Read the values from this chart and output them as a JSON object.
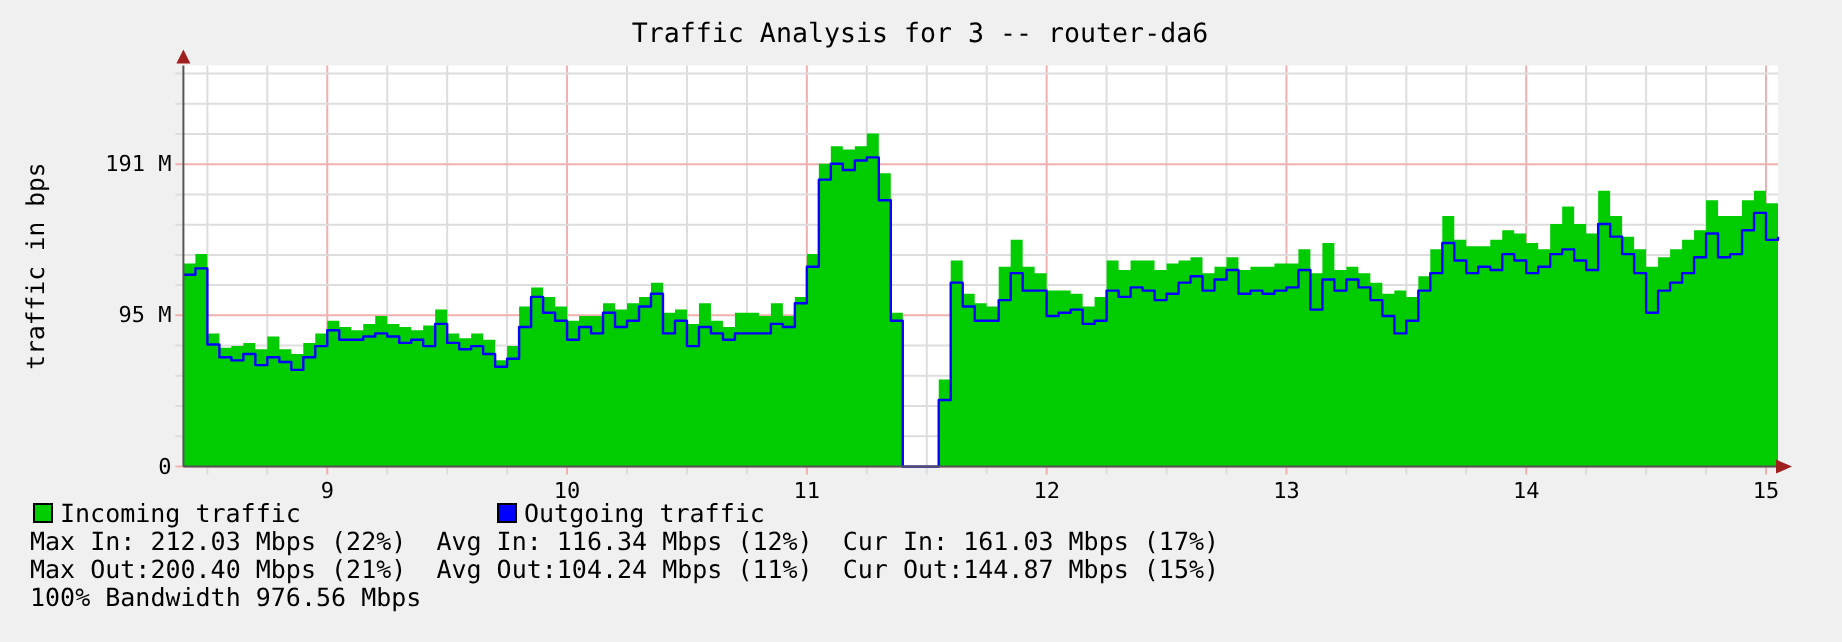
{
  "chart_data": {
    "type": "area",
    "title": "Traffic Analysis for 3 -- router-da6",
    "ylabel": "traffic in bps",
    "x": [
      8.4,
      8.45,
      8.5,
      8.55,
      8.6,
      8.65,
      8.7,
      8.75,
      8.8,
      8.85,
      8.9,
      8.95,
      9,
      9.05,
      9.1,
      9.15,
      9.2,
      9.25,
      9.3,
      9.35,
      9.4,
      9.45,
      9.5,
      9.55,
      9.6,
      9.65,
      9.7,
      9.75,
      9.8,
      9.85,
      9.9,
      9.95,
      10,
      10.05,
      10.1,
      10.15,
      10.2,
      10.25,
      10.3,
      10.35,
      10.4,
      10.45,
      10.5,
      10.55,
      10.6,
      10.65,
      10.7,
      10.75,
      10.8,
      10.85,
      10.9,
      10.95,
      11,
      11.05,
      11.1,
      11.15,
      11.2,
      11.25,
      11.3,
      11.35,
      11.4,
      11.45,
      11.5,
      11.55,
      11.6,
      11.65,
      11.7,
      11.75,
      11.8,
      11.85,
      11.9,
      11.95,
      12,
      12.05,
      12.1,
      12.15,
      12.2,
      12.25,
      12.3,
      12.35,
      12.4,
      12.45,
      12.5,
      12.55,
      12.6,
      12.65,
      12.7,
      12.75,
      12.8,
      12.85,
      12.9,
      12.95,
      13,
      13.05,
      13.1,
      13.15,
      13.2,
      13.25,
      13.3,
      13.35,
      13.4,
      13.45,
      13.5,
      13.55,
      13.6,
      13.65,
      13.7,
      13.75,
      13.8,
      13.85,
      13.9,
      13.95,
      14,
      14.05,
      14.1,
      14.15,
      14.2,
      14.25,
      14.3,
      14.35,
      14.4,
      14.45,
      14.5,
      14.55,
      14.6,
      14.65,
      14.7,
      14.75,
      14.8,
      14.85,
      14.9,
      14.95,
      15,
      15.05
    ],
    "series": [
      {
        "name": "Incoming traffic",
        "color": "#00cc00",
        "values": [
          128,
          134,
          84,
          75,
          76,
          78,
          74,
          82,
          74,
          71,
          78,
          84,
          92,
          88,
          86,
          90,
          95,
          90,
          88,
          86,
          89,
          99,
          84,
          81,
          84,
          80,
          67,
          76,
          101,
          113,
          107,
          101,
          92,
          95,
          95,
          103,
          99,
          103,
          107,
          116,
          97,
          99,
          90,
          103,
          92,
          88,
          97,
          97,
          95,
          103,
          95,
          107,
          134,
          191,
          202,
          200,
          202,
          210,
          185,
          97,
          0,
          0,
          0,
          55,
          130,
          109,
          103,
          101,
          126,
          143,
          126,
          122,
          111,
          111,
          109,
          101,
          107,
          130,
          124,
          130,
          130,
          124,
          128,
          130,
          132,
          122,
          126,
          132,
          124,
          126,
          126,
          128,
          128,
          137,
          122,
          141,
          124,
          126,
          122,
          116,
          109,
          111,
          107,
          120,
          137,
          158,
          143,
          139,
          139,
          143,
          149,
          147,
          141,
          137,
          153,
          164,
          153,
          147,
          174,
          158,
          145,
          137,
          126,
          132,
          137,
          143,
          149,
          168,
          158,
          158,
          168,
          174,
          166,
          161
        ]
      },
      {
        "name": "Outgoing traffic",
        "type": "step",
        "color": "#0000ff",
        "values": [
          121,
          125,
          77,
          69,
          67,
          71,
          64,
          69,
          66,
          61,
          69,
          76,
          86,
          80,
          80,
          82,
          84,
          82,
          78,
          80,
          76,
          90,
          78,
          74,
          76,
          71,
          63,
          68,
          88,
          107,
          97,
          92,
          80,
          88,
          84,
          97,
          88,
          92,
          101,
          109,
          84,
          92,
          76,
          88,
          84,
          80,
          84,
          84,
          84,
          90,
          88,
          103,
          126,
          181,
          191,
          187,
          193,
          195,
          168,
          92,
          0,
          0,
          0,
          42,
          116,
          101,
          92,
          92,
          105,
          122,
          111,
          111,
          95,
          97,
          99,
          90,
          92,
          111,
          107,
          113,
          111,
          105,
          109,
          116,
          120,
          111,
          118,
          124,
          109,
          111,
          109,
          111,
          113,
          124,
          99,
          118,
          111,
          118,
          113,
          105,
          95,
          84,
          92,
          111,
          122,
          141,
          130,
          122,
          126,
          124,
          134,
          130,
          122,
          126,
          134,
          137,
          130,
          124,
          153,
          145,
          134,
          122,
          97,
          111,
          116,
          122,
          132,
          147,
          132,
          134,
          149,
          160,
          143,
          145
        ]
      }
    ],
    "xlim": [
      8.4,
      15.05
    ],
    "xticks": [
      {
        "value": 8.5,
        "label": null
      },
      {
        "value": 8.75,
        "label": null
      },
      9,
      {
        "value": 9.25,
        "label": null
      },
      {
        "value": 9.5,
        "label": null
      },
      {
        "value": 9.75,
        "label": null
      },
      10,
      {
        "value": 10.25,
        "label": null
      },
      {
        "value": 10.5,
        "label": null
      },
      {
        "value": 10.75,
        "label": null
      },
      11,
      {
        "value": 11.25,
        "label": null
      },
      {
        "value": 11.5,
        "label": null
      },
      {
        "value": 11.75,
        "label": null
      },
      12,
      {
        "value": 12.25,
        "label": null
      },
      {
        "value": 12.5,
        "label": null
      },
      {
        "value": 12.75,
        "label": null
      },
      13,
      {
        "value": 13.25,
        "label": null
      },
      {
        "value": 13.5,
        "label": null
      },
      {
        "value": 13.75,
        "label": null
      },
      14,
      {
        "value": 14.25,
        "label": null
      },
      {
        "value": 14.5,
        "label": null
      },
      {
        "value": 14.75,
        "label": null
      },
      15
    ],
    "ylim": [
      0,
      253
    ],
    "yticks": [
      0,
      {
        "value": 19.07,
        "label": null
      },
      {
        "value": 38.15,
        "label": null
      },
      {
        "value": 57.22,
        "label": null
      },
      {
        "value": 76.29,
        "label": null
      },
      {
        "value": 95.37,
        "label": "95 M"
      },
      {
        "value": 114.44,
        "label": null
      },
      {
        "value": 133.51,
        "label": null
      },
      {
        "value": 152.59,
        "label": null
      },
      {
        "value": 171.66,
        "label": null
      },
      {
        "value": 190.73,
        "label": "191 M"
      },
      {
        "value": 209.81,
        "label": null
      },
      {
        "value": 228.88,
        "label": null
      },
      {
        "value": 247.96,
        "label": null
      }
    ],
    "grid": true,
    "legend": "bottom",
    "annotations": [
      "Max In: 212.03 Mbps (22%)  Avg In: 116.34 Mbps (12%)  Cur In: 161.03 Mbps (17%)",
      "Max Out:200.40 Mbps (21%)  Avg Out:104.24 Mbps (11%)  Cur Out:144.87 Mbps (15%)",
      "100% Bandwidth 976.56 Mbps"
    ]
  }
}
